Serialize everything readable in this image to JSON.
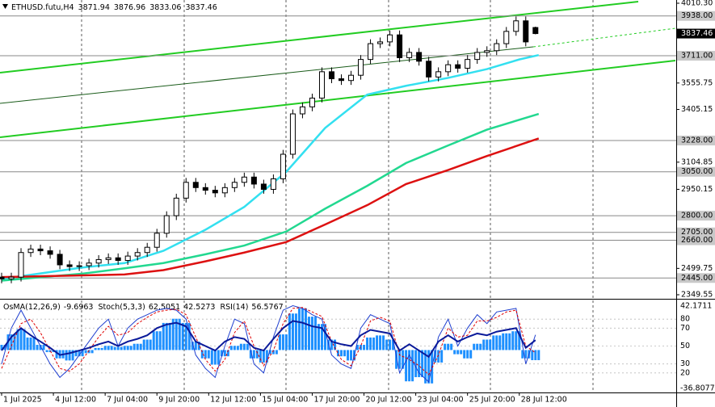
{
  "chart_data": [
    {
      "type": "candlestick",
      "title": "ETHUSD.futu,H4",
      "x": [
        0,
        3,
        6,
        9,
        12,
        15,
        18,
        21,
        24,
        27,
        30,
        33,
        36,
        39,
        42,
        45,
        48,
        51,
        54,
        57,
        60,
        63,
        66,
        69,
        72,
        75,
        78,
        81,
        84,
        87,
        90,
        93,
        96,
        99,
        102,
        105,
        108,
        111,
        114,
        117,
        120,
        123,
        126,
        129,
        132,
        135,
        138,
        141,
        144,
        147,
        150,
        153,
        156,
        159,
        162,
        165
      ],
      "open": [
        2450,
        2440,
        2450,
        2590,
        2610,
        2600,
        2580,
        2520,
        2510,
        2515,
        2530,
        2550,
        2560,
        2545,
        2570,
        2590,
        2620,
        2700,
        2800,
        2900,
        2990,
        2960,
        2945,
        2930,
        2960,
        2990,
        3020,
        2980,
        2950,
        3010,
        3150,
        3380,
        3420,
        3470,
        3620,
        3580,
        3570,
        3600,
        3690,
        3780,
        3790,
        3830,
        3700,
        3730,
        3680,
        3590,
        3620,
        3660,
        3640,
        3690,
        3730,
        3740,
        3780,
        3850,
        3910,
        3871.94
      ],
      "high": [
        2475,
        2475,
        2615,
        2635,
        2635,
        2625,
        2605,
        2545,
        2540,
        2555,
        2575,
        2585,
        2585,
        2595,
        2615,
        2645,
        2725,
        2825,
        2925,
        3015,
        3015,
        2985,
        2970,
        2985,
        3015,
        3045,
        3045,
        3005,
        3035,
        3175,
        3405,
        3445,
        3495,
        3645,
        3645,
        3605,
        3625,
        3715,
        3805,
        3815,
        3855,
        3855,
        3755,
        3755,
        3705,
        3645,
        3685,
        3685,
        3715,
        3755,
        3765,
        3805,
        3875,
        3935,
        3935,
        3876.96
      ],
      "low": [
        2415,
        2415,
        2425,
        2565,
        2575,
        2555,
        2495,
        2485,
        2485,
        2490,
        2505,
        2525,
        2520,
        2520,
        2545,
        2565,
        2595,
        2675,
        2775,
        2875,
        2935,
        2920,
        2905,
        2905,
        2935,
        2965,
        2955,
        2925,
        2925,
        2985,
        3125,
        3355,
        3395,
        3445,
        3555,
        3545,
        3545,
        3575,
        3665,
        3755,
        3765,
        3675,
        3675,
        3655,
        3565,
        3565,
        3595,
        3615,
        3615,
        3665,
        3705,
        3715,
        3755,
        3825,
        3765,
        3833.06
      ],
      "close": [
        2440,
        2450,
        2590,
        2610,
        2600,
        2580,
        2520,
        2510,
        2515,
        2530,
        2550,
        2560,
        2545,
        2570,
        2590,
        2620,
        2700,
        2800,
        2900,
        2990,
        2960,
        2945,
        2930,
        2960,
        2990,
        3020,
        2980,
        2950,
        3010,
        3150,
        3380,
        3420,
        3470,
        3620,
        3580,
        3570,
        3600,
        3690,
        3780,
        3790,
        3830,
        3700,
        3730,
        3680,
        3590,
        3620,
        3660,
        3640,
        3690,
        3730,
        3740,
        3780,
        3850,
        3910,
        3790,
        3837.46
      ],
      "color": "#000000",
      "xlim": [
        0,
        208
      ],
      "ylim": [
        2349.55,
        4010.3
      ],
      "xticks": [
        {
          "value": 0,
          "label": "1 Jul 2025"
        },
        {
          "value": 16,
          "label": "4 Jul 12:00"
        },
        {
          "value": 32,
          "label": "7 Jul 04:00"
        },
        {
          "value": 48,
          "label": "9 Jul 20:00"
        },
        {
          "value": 64,
          "label": "12 Jul 12:00"
        },
        {
          "value": 80,
          "label": "15 Jul 04:00"
        },
        {
          "value": 96,
          "label": "17 Jul 20:00"
        },
        {
          "value": 112,
          "label": "20 Jul 12:00"
        },
        {
          "value": 128,
          "label": "23 Jul 04:00"
        },
        {
          "value": 144,
          "label": "25 Jul 20:00"
        },
        {
          "value": 160,
          "label": "28 Jul 12:00"
        }
      ],
      "yticks": [
        {
          "value": 4010.3,
          "label": "4010.30"
        },
        {
          "value": 3555.75,
          "label": "3555.75"
        },
        {
          "value": 3405.15,
          "label": "3405.15"
        },
        {
          "value": 3104.85,
          "label": "3104.85"
        },
        {
          "value": 2950.15,
          "label": "2950.15"
        },
        {
          "value": 2499.75,
          "label": "2499.75"
        },
        {
          "value": 2349.55,
          "label": "2349.55"
        }
      ],
      "levels": [
        {
          "value": 3938,
          "label": "3938.00"
        },
        {
          "value": 3711,
          "label": "3711.00"
        },
        {
          "value": 3228,
          "label": "3228.00"
        },
        {
          "value": 3050,
          "label": "3050.00"
        },
        {
          "value": 2800,
          "label": "2800.00"
        },
        {
          "value": 2705,
          "label": "2705.00"
        },
        {
          "value": 2660,
          "label": "2660.00"
        },
        {
          "value": 2445,
          "label": "2445.00"
        }
      ],
      "lines": [
        {
          "color": "#33e0f0",
          "x": [
            0,
            25,
            38,
            50,
            63,
            75,
            88,
            100,
            113,
            125,
            138,
            150,
            160,
            166
          ],
          "values": [
            2440,
            2505,
            2530,
            2600,
            2720,
            2850,
            3050,
            3300,
            3490,
            3540,
            3585,
            3635,
            3690,
            3715
          ]
        },
        {
          "color": "#22d890",
          "x": [
            0,
            25,
            38,
            50,
            63,
            75,
            88,
            100,
            113,
            125,
            138,
            150,
            166
          ],
          "values": [
            2430,
            2470,
            2500,
            2530,
            2580,
            2630,
            2710,
            2840,
            2970,
            3100,
            3200,
            3290,
            3380
          ]
        },
        {
          "color": "#dd1111",
          "x": [
            0,
            25,
            38,
            50,
            63,
            75,
            88,
            100,
            113,
            125,
            138,
            150,
            166
          ],
          "values": [
            2450,
            2460,
            2465,
            2490,
            2540,
            2590,
            2650,
            2750,
            2860,
            2980,
            3060,
            3140,
            3240
          ]
        }
      ]
    },
    {
      "type": "oscillator",
      "ylim": [
        0,
        100
      ],
      "yticks": [
        80,
        70,
        50,
        30,
        20
      ],
      "y2lim": [
        -36.80774,
        42.1711
      ],
      "y2ticks": [
        42.1711,
        -36.80774
      ],
      "series": [
        {
          "name": "OsMA(12,26,9)",
          "color": "#1e90ff",
          "axis": "y2",
          "kind": "histogram",
          "values": [
            5,
            15,
            20,
            12,
            5,
            -2,
            -8,
            -10,
            -6,
            -3,
            2,
            4,
            3,
            4,
            6,
            10,
            18,
            26,
            30,
            26,
            8,
            -8,
            -14,
            -6,
            4,
            6,
            -8,
            -12,
            -4,
            15,
            35,
            40,
            32,
            25,
            10,
            -6,
            -10,
            5,
            12,
            14,
            10,
            -18,
            -30,
            -26,
            -32,
            -12,
            6,
            -4,
            -8,
            6,
            10,
            14,
            16,
            18,
            -8,
            -9.6963
          ]
        },
        {
          "name": "Stoch(5,3,3)",
          "color": "#2040d0",
          "kind": "line",
          "values": [
            30,
            70,
            90,
            70,
            50,
            30,
            15,
            25,
            40,
            55,
            70,
            80,
            50,
            70,
            80,
            85,
            90,
            92,
            90,
            80,
            40,
            25,
            15,
            50,
            80,
            75,
            30,
            20,
            60,
            90,
            95,
            92,
            85,
            80,
            40,
            30,
            25,
            70,
            85,
            80,
            75,
            20,
            40,
            20,
            10,
            60,
            80,
            50,
            70,
            85,
            75,
            88,
            90,
            92,
            30,
            62.5051
          ]
        },
        {
          "color": "#e00000",
          "kind": "dashed",
          "values": [
            25,
            50,
            75,
            80,
            65,
            45,
            25,
            22,
            30,
            45,
            60,
            72,
            62,
            65,
            75,
            82,
            88,
            90,
            91,
            85,
            60,
            35,
            22,
            35,
            65,
            78,
            50,
            28,
            45,
            75,
            92,
            93,
            88,
            83,
            55,
            35,
            28,
            50,
            78,
            82,
            78,
            40,
            35,
            28,
            18,
            40,
            70,
            60,
            62,
            78,
            78,
            82,
            88,
            90,
            50,
            42.5273
          ]
        },
        {
          "name": "RSI(14)",
          "color": "#0a1a9a",
          "kind": "thick",
          "values": [
            45,
            60,
            70,
            62,
            55,
            48,
            40,
            42,
            45,
            48,
            52,
            55,
            50,
            55,
            58,
            62,
            70,
            74,
            76,
            72,
            55,
            50,
            45,
            55,
            60,
            58,
            48,
            45,
            58,
            70,
            78,
            76,
            72,
            70,
            55,
            52,
            50,
            62,
            68,
            66,
            64,
            45,
            52,
            45,
            38,
            55,
            62,
            55,
            60,
            64,
            62,
            66,
            68,
            70,
            48,
            56.5767
          ]
        }
      ]
    }
  ]
}
